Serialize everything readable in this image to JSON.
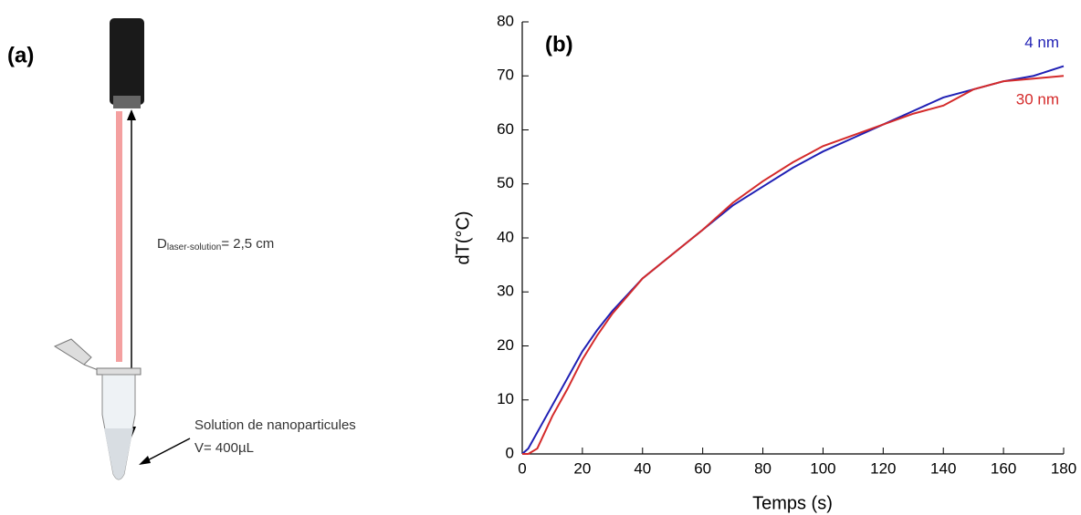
{
  "diagram": {
    "label": "(a)",
    "distance": {
      "symbol": "D",
      "subscript": "laser-solution",
      "text": "= 2,5 cm"
    },
    "solution": [
      "Solution de nanoparticules",
      "V= 400µL"
    ]
  },
  "chart_data": {
    "type": "line",
    "annotation": "(b)",
    "x_label": "Temps (s)",
    "y_label": "dT(°C)",
    "x": [
      0,
      2,
      5,
      10,
      15,
      20,
      25,
      30,
      40,
      50,
      60,
      70,
      80,
      90,
      100,
      110,
      120,
      130,
      140,
      150,
      160,
      170,
      180
    ],
    "series": [
      {
        "name": "4 nm",
        "color": "#1f1fb4",
        "values": [
          0,
          1,
          4,
          9,
          14,
          19,
          23,
          26.5,
          32.5,
          37,
          41.5,
          46,
          49.5,
          53,
          56,
          58.5,
          61,
          63.5,
          66,
          67.5,
          69,
          70,
          71.8
        ]
      },
      {
        "name": "30 nm",
        "color": "#d42a2a",
        "values": [
          0,
          0,
          1,
          7,
          12,
          17.5,
          22,
          26,
          32.5,
          37,
          41.5,
          46.5,
          50.5,
          54,
          57,
          59,
          61,
          63,
          64.5,
          67.5,
          69,
          69.5,
          70
        ]
      }
    ],
    "xlim": [
      0,
      180
    ],
    "ylim": [
      0,
      80
    ],
    "xticks": [
      0,
      20,
      40,
      60,
      80,
      100,
      120,
      140,
      160,
      180
    ],
    "yticks": [
      0,
      10,
      20,
      30,
      40,
      50,
      60,
      70,
      80
    ]
  }
}
